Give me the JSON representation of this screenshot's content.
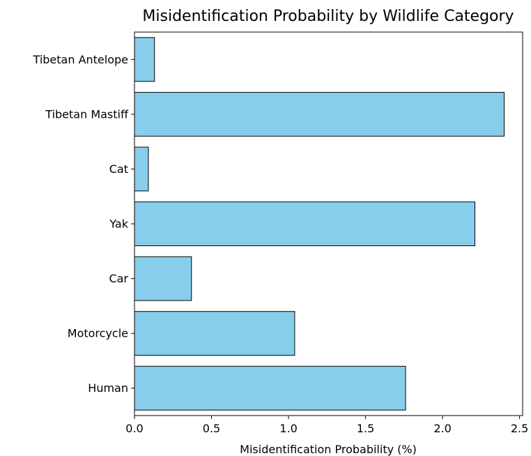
{
  "chart_data": {
    "type": "bar",
    "orientation": "horizontal",
    "title": "Misidentification Probability by Wildlife Category",
    "xlabel": "Misidentification Probability (%)",
    "ylabel": "",
    "categories": [
      "Human",
      "Motorcycle",
      "Car",
      "Yak",
      "Cat",
      "Tibetan Mastiff",
      "Tibetan Antelope"
    ],
    "values": [
      1.76,
      1.04,
      0.37,
      2.21,
      0.09,
      2.4,
      0.13
    ],
    "xlim": [
      0,
      2.52
    ],
    "xticks": [
      "0.0",
      "0.5",
      "1.0",
      "1.5",
      "2.0",
      "2.5"
    ],
    "grid": false,
    "bar_color": "#87ceeb",
    "edge_color": "#000000"
  }
}
